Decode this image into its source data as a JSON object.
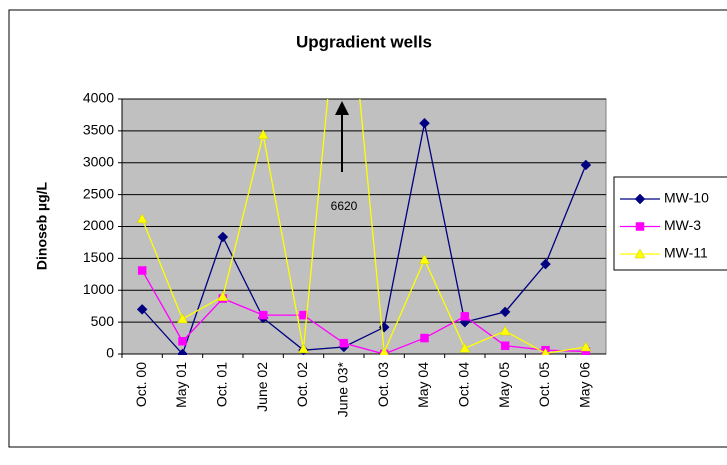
{
  "chart_data": {
    "type": "line",
    "title": "Upgradient wells",
    "y_label": "Dinoseb µg/L",
    "categories": [
      "Oct. 00",
      "May 01",
      "Oct. 01",
      "June 02",
      "Oct. 02",
      "June 03*",
      "Oct. 03",
      "May 04",
      "Oct. 04",
      "May 05",
      "Oct. 05",
      "May 06"
    ],
    "series": [
      {
        "name": "MW-10",
        "color": "#000080",
        "marker": "diamond",
        "values": [
          700,
          0,
          1835,
          565,
          60,
          110,
          420,
          3620,
          500,
          660,
          1410,
          2965
        ]
      },
      {
        "name": "MW-3",
        "color": "#ff00ff",
        "marker": "square",
        "values": [
          1310,
          200,
          870,
          610,
          610,
          170,
          0,
          250,
          590,
          130,
          60,
          40
        ]
      },
      {
        "name": "MW-11",
        "color": "#ffff00",
        "marker": "triangle",
        "values": [
          2120,
          550,
          900,
          3440,
          80,
          6620,
          30,
          1480,
          90,
          360,
          10,
          110
        ]
      }
    ],
    "ylim": [
      0,
      4000
    ],
    "yticks": [
      0,
      500,
      1000,
      1500,
      2000,
      2500,
      3000,
      3500,
      4000
    ],
    "grid": true,
    "annotations": [
      {
        "text": "6620"
      }
    ]
  }
}
